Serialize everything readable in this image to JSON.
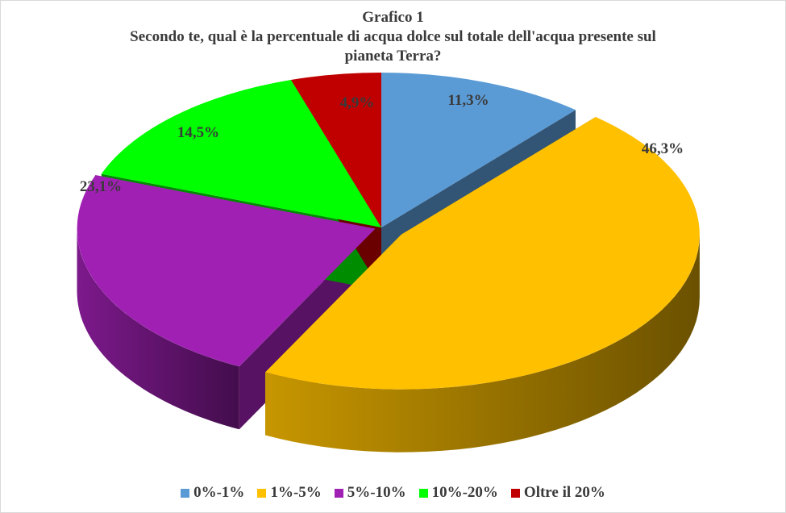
{
  "chart_data": {
    "type": "pie",
    "title": "Grafico 1",
    "subtitle_lines": [
      "Secondo te, qual è la percentuale di acqua dolce sul totale dell'acqua presente sul",
      "pianeta Terra?"
    ],
    "categories": [
      "0%-1%",
      "1%-5%",
      "5%-10%",
      "10%-20%",
      "Oltre il 20%"
    ],
    "values": [
      11.3,
      46.3,
      23.1,
      14.5,
      4.9
    ],
    "data_labels": [
      "11,3%",
      "46,3%",
      "23,1%",
      "14,5%",
      "4,9%"
    ],
    "colors": [
      "#5b9bd5",
      "#ffc000",
      "#a020b4",
      "#00ff00",
      "#c00000"
    ],
    "exploded": [
      "1%-5%",
      "5%-10%"
    ],
    "style": "3d",
    "legend_position": "bottom"
  }
}
